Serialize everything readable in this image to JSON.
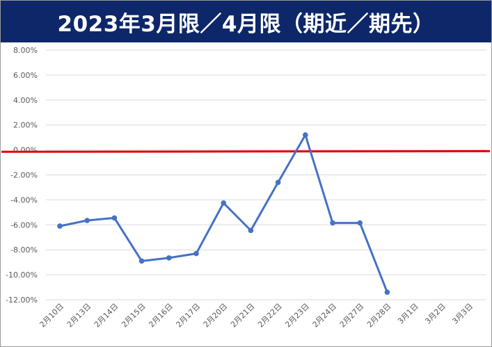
{
  "header": {
    "title": "2023年3月限／4月限（期近／期先）",
    "bg_color": "#0d2769",
    "text_color": "#ffffff"
  },
  "chart_data": {
    "type": "line",
    "title": "2023年3月限／4月限（期近／期先）",
    "xlabel": "",
    "ylabel": "",
    "ylim": [
      -0.12,
      0.08
    ],
    "yticks": [
      0.08,
      0.06,
      0.04,
      0.02,
      0.0,
      -0.02,
      -0.04,
      -0.06,
      -0.08,
      -0.1,
      -0.12
    ],
    "ytick_labels": [
      "8.00%",
      "6.00%",
      "4.00%",
      "2.00%",
      "0.00%",
      "-2.00%",
      "-4.00%",
      "-6.00%",
      "-8.00%",
      "-10.00%",
      "-12.00%"
    ],
    "grid": true,
    "legend": "none",
    "categories": [
      "2月10日",
      "2月13日",
      "2月14日",
      "2月15日",
      "2月16日",
      "2月17日",
      "2月20日",
      "2月21日",
      "2月22日",
      "2月23日",
      "2月24日",
      "2月27日",
      "2月28日",
      "3月1日",
      "3月2日",
      "3月3日"
    ],
    "series": [
      {
        "color": "#4472c4",
        "values": [
          -0.061,
          -0.0565,
          -0.0545,
          -0.089,
          -0.0865,
          -0.083,
          -0.0425,
          -0.0645,
          -0.026,
          0.012,
          -0.0585,
          -0.0585,
          -0.114,
          null,
          null,
          null
        ]
      }
    ],
    "reference_line": {
      "color": "#e00000",
      "y_start": -0.0015,
      "y_end": -0.001
    }
  }
}
